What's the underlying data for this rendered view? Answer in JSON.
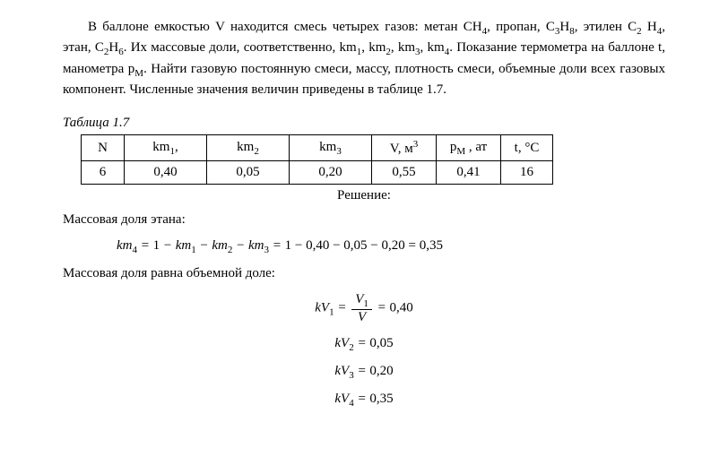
{
  "problem": {
    "text": "В баллоне емкостью V находится смесь четырех газов: метан CH₄, пропан, C₃H₈, этилен C₂ H₄, этан, C₂H₆. Их массовые доли, соответственно, km₁, km₂, km₃, km₄. Показание термометра на баллоне t, манометра pM. Найти газовую постоянную смеси, массу, плотность смеси, объемные доли всех газовых компонент. Численные значения величин приведены в таблице 1.7."
  },
  "table": {
    "caption": "Таблица 1.7",
    "headers": {
      "n": "N",
      "km1": "km₁,",
      "km2": "km₂",
      "km3": "km₃",
      "v": "V, м³",
      "pm": "pM , ат",
      "t": "t, °C"
    },
    "row": {
      "n": "6",
      "km1": "0,40",
      "km2": "0,05",
      "km3": "0,20",
      "v": "0,55",
      "pm": "0,41",
      "t": "16"
    }
  },
  "solution": {
    "title": "Решение:",
    "line1": "Массовая доля этана:",
    "eq1": "km₄ = 1 − km₁ − km₂ − km₃ = 1 − 0,40 − 0,05 − 0,20 = 0,35",
    "line2": "Массовая доля равна объемной доле:",
    "eq2_lhs": "kV₁",
    "eq2_num": "V₁",
    "eq2_den": "V",
    "eq2_rhs": "0,40",
    "eq3": "kV₂ = 0,05",
    "eq4": "kV₃ = 0,20",
    "eq5": "kV₄ = 0,35"
  }
}
